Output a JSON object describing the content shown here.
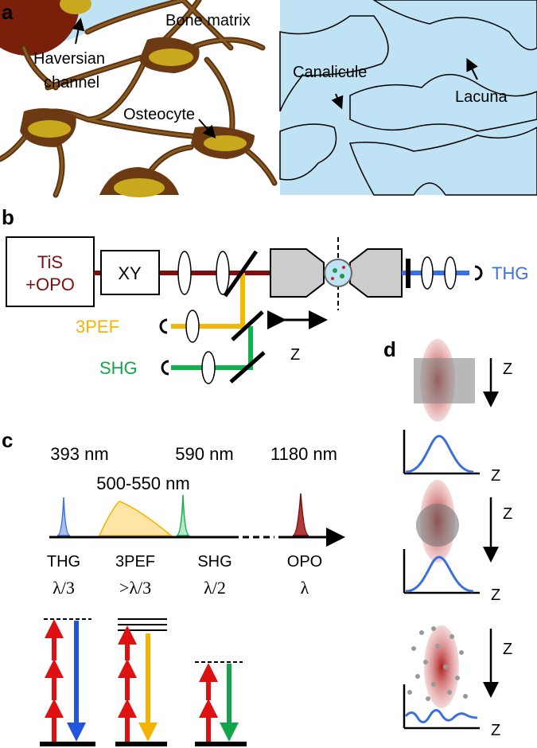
{
  "panels": {
    "a": {
      "label": "a",
      "bone_matrix": "Bone matrix",
      "haversian": [
        "Haversian",
        "channel"
      ],
      "osteocyte": "Osteocyte",
      "canalicule": "Canalicule",
      "lacuna": "Lacuna"
    },
    "b": {
      "label": "b",
      "laser": [
        "TiS",
        "+OPO"
      ],
      "scanner": "XY",
      "thg": "THG",
      "tpef": "3PEF",
      "shg": "SHG",
      "z": "Z"
    },
    "c": {
      "label": "c",
      "peaks": [
        {
          "wavelength": "393 nm",
          "name": "THG",
          "order": "λ/3"
        },
        {
          "wavelength": "500-550 nm",
          "name": "3PEF",
          "order": ">λ/3"
        },
        {
          "wavelength": "590 nm",
          "name": "SHG",
          "order": "λ/2"
        },
        {
          "wavelength": "1180 nm",
          "name": "OPO",
          "order": "λ"
        }
      ]
    },
    "d": {
      "label": "d",
      "rows": [
        {
          "arrow_label": "Z",
          "axis_label": "Z"
        },
        {
          "arrow_label": "Z",
          "axis_label": "Z"
        },
        {
          "arrow_label": "Z",
          "axis_label": "Z"
        }
      ]
    }
  }
}
